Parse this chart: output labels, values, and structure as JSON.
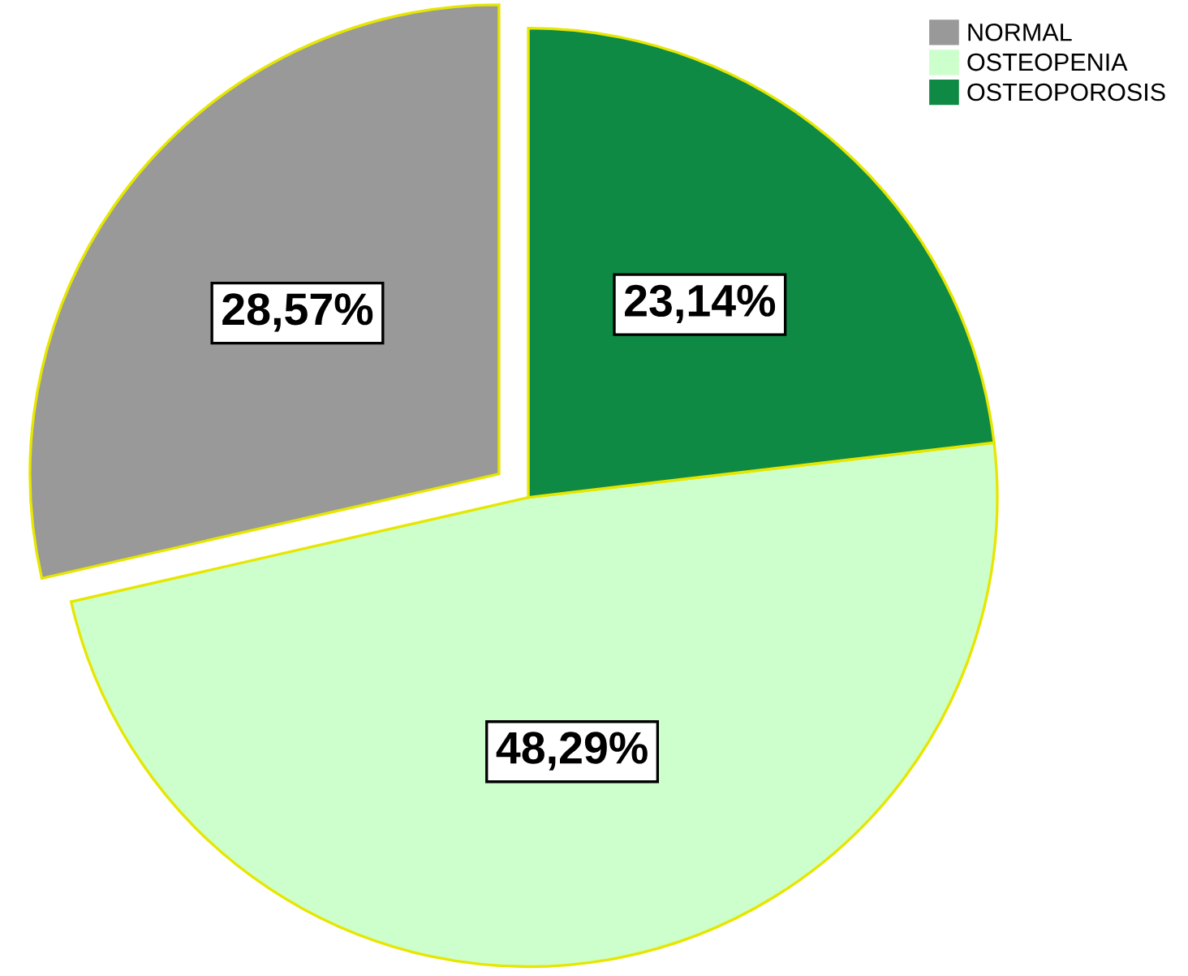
{
  "chart_data": {
    "type": "pie",
    "categories": [
      "NORMAL",
      "OSTEOPENIA",
      "OSTEOPOROSIS"
    ],
    "values": [
      28.57,
      48.29,
      23.14
    ],
    "value_labels": [
      "28,57%",
      "48,29%",
      "23,14%"
    ],
    "colors": [
      "#999999",
      "#ccffcc",
      "#0f8a45"
    ],
    "legend": "top right"
  }
}
